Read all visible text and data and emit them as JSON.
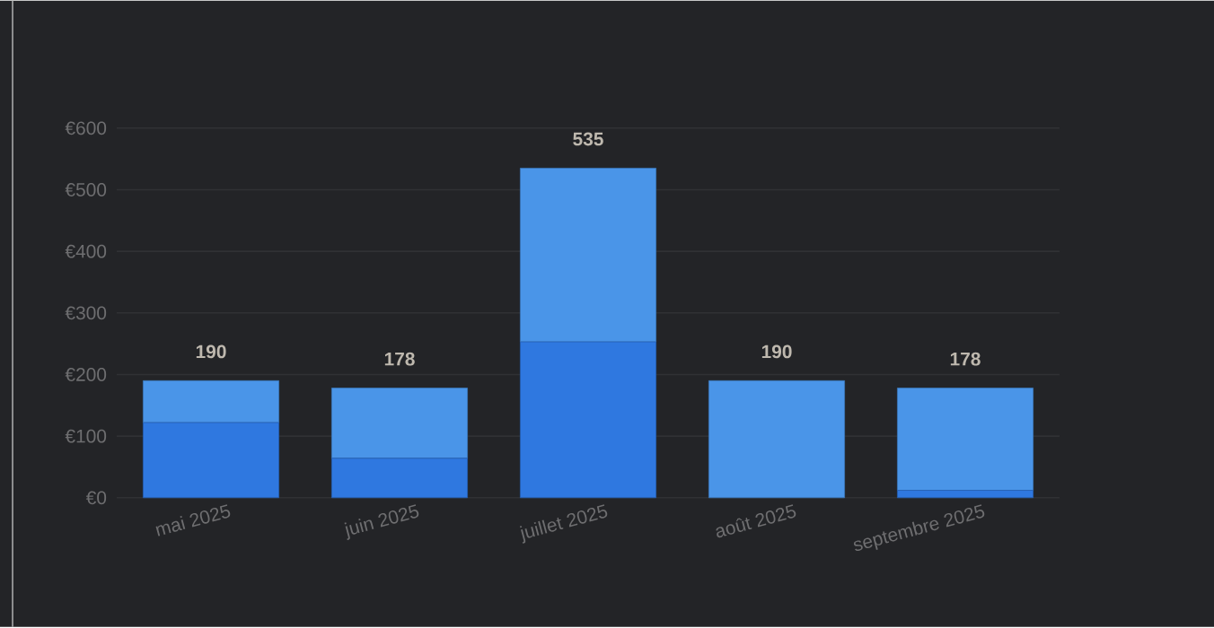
{
  "chart_data": {
    "type": "bar",
    "stacked": true,
    "categories": [
      "mai 2025",
      "juin 2025",
      "juillet 2025",
      "août 2025",
      "septembre 2025"
    ],
    "series": [
      {
        "color": "#2f78e0",
        "values": [
          122,
          64,
          253,
          0,
          12
        ]
      },
      {
        "color": "#4a95e8",
        "values": [
          68,
          114,
          282,
          190,
          166
        ]
      }
    ],
    "totals": [
      "190",
      "178",
      "535",
      "190",
      "178"
    ],
    "ylim": [
      0,
      600
    ],
    "yticks": [
      {
        "value": 0,
        "label": "€0"
      },
      {
        "value": 100,
        "label": "€100"
      },
      {
        "value": 200,
        "label": "€200"
      },
      {
        "value": 300,
        "label": "€300"
      },
      {
        "value": 400,
        "label": "€400"
      },
      {
        "value": 500,
        "label": "€500"
      },
      {
        "value": 600,
        "label": "€600"
      }
    ],
    "grid": "y"
  }
}
